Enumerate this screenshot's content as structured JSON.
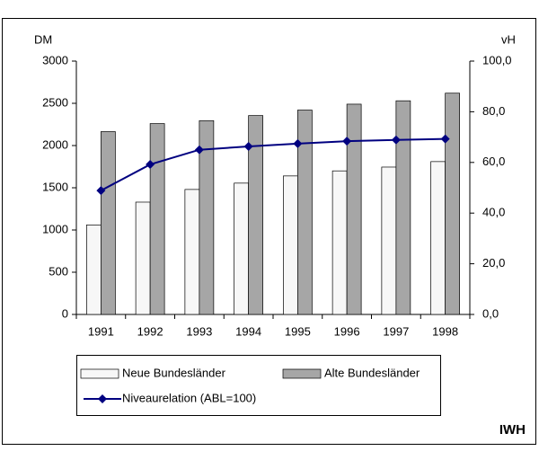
{
  "chart_data": {
    "type": "bar",
    "y_label": "DM",
    "y2_label": "vH",
    "source": "IWH",
    "categories": [
      "1991",
      "1992",
      "1993",
      "1994",
      "1995",
      "1996",
      "1997",
      "1998"
    ],
    "series": [
      {
        "name": "Neue Bundesländer",
        "color": "#f7f7f7",
        "values": [
          1060,
          1330,
          1480,
          1555,
          1640,
          1700,
          1745,
          1810
        ]
      },
      {
        "name": "Alte Bundesländer",
        "color": "#a6a6a6",
        "values": [
          2165,
          2260,
          2295,
          2355,
          2420,
          2490,
          2530,
          2620
        ]
      },
      {
        "name": "Niveaurelation (ABL=100)",
        "type": "line",
        "axis": "y2",
        "color": "#000080",
        "values": [
          48.9,
          59.2,
          65.0,
          66.3,
          67.4,
          68.4,
          68.9,
          69.3
        ]
      }
    ],
    "ylim": [
      0,
      3000
    ],
    "yticks": [
      0,
      500,
      1000,
      1500,
      2000,
      2500,
      3000
    ],
    "y2lim": [
      0,
      100
    ],
    "y2ticks": [
      {
        "value": 0,
        "label": "0,0"
      },
      {
        "value": 20,
        "label": "20,0"
      },
      {
        "value": 40,
        "label": "40,0"
      },
      {
        "value": 60,
        "label": "60,0"
      },
      {
        "value": 80,
        "label": "80,0"
      },
      {
        "value": 100,
        "label": "100,0"
      }
    ],
    "grid": false
  }
}
